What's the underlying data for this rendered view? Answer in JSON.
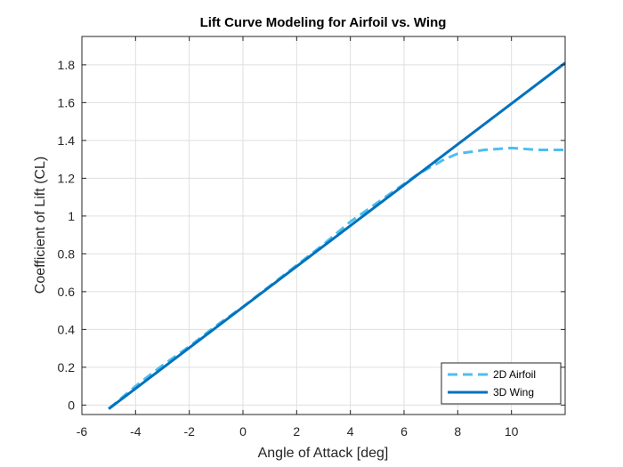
{
  "chart_data": {
    "type": "line",
    "title": "Lift Curve Modeling for Airfoil vs. Wing",
    "xlabel": "Angle of Attack [deg]",
    "ylabel": "Coefficient of Lift (CL)",
    "xlim": [
      -6,
      12
    ],
    "ylim": [
      -0.05,
      1.95
    ],
    "xticks": [
      -6,
      -4,
      -2,
      0,
      2,
      4,
      6,
      8,
      10
    ],
    "yticks": [
      0,
      0.2,
      0.4,
      0.6,
      0.8,
      1,
      1.2,
      1.4,
      1.6,
      1.8
    ],
    "ytick_labels": [
      "0",
      "0.2",
      "0.4",
      "0.6",
      "0.8",
      "1",
      "1.2",
      "1.4",
      "1.6",
      "1.8"
    ],
    "grid": true,
    "legend_position": "bottom-right",
    "series": [
      {
        "name": "2D Airfoil",
        "style": "dashed",
        "color": "#4DBEEE",
        "x": [
          -5,
          -4,
          -3,
          -2,
          -1,
          0,
          1,
          2,
          3,
          4,
          5,
          6,
          6.5,
          7,
          7.5,
          8,
          9,
          10,
          11,
          12
        ],
        "y": [
          -0.02,
          0.1,
          0.21,
          0.31,
          0.42,
          0.52,
          0.63,
          0.74,
          0.85,
          0.97,
          1.07,
          1.17,
          1.22,
          1.26,
          1.3,
          1.33,
          1.35,
          1.36,
          1.35,
          1.35
        ]
      },
      {
        "name": "3D Wing",
        "style": "solid",
        "color": "#0072BD",
        "x": [
          -5,
          12
        ],
        "y": [
          -0.02,
          1.81
        ]
      }
    ]
  }
}
